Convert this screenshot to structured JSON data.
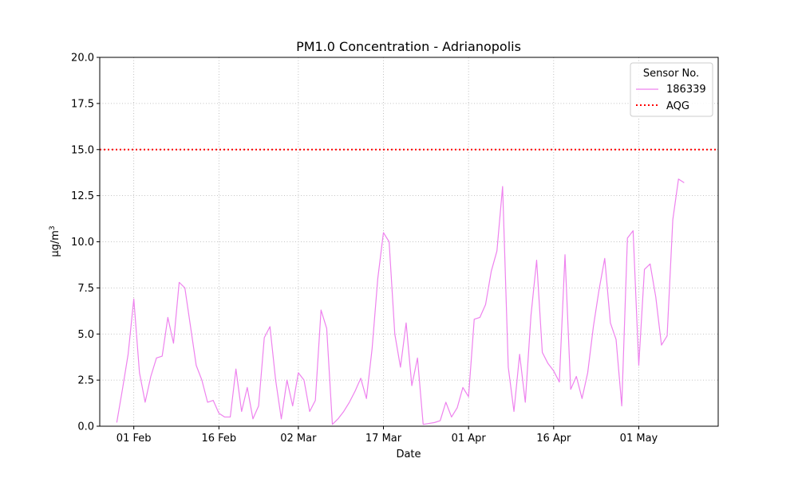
{
  "chart_data": {
    "type": "line",
    "title": "PM1.0 Concentration - Adrianopolis",
    "xlabel": "Date",
    "ylabel": "µg/m",
    "ylabel_sup": "3",
    "ylim": [
      0,
      20
    ],
    "yticks": [
      "0.0",
      "2.5",
      "5.0",
      "7.5",
      "10.0",
      "12.5",
      "15.0",
      "17.5",
      "20.0"
    ],
    "xlim": [
      "2025-01-26",
      "2025-05-15"
    ],
    "xticks": [
      {
        "date": "2025-02-01",
        "label": "01 Feb"
      },
      {
        "date": "2025-02-16",
        "label": "16 Feb"
      },
      {
        "date": "2025-03-02",
        "label": "02 Mar"
      },
      {
        "date": "2025-03-17",
        "label": "17 Mar"
      },
      {
        "date": "2025-04-01",
        "label": "01 Apr"
      },
      {
        "date": "2025-04-16",
        "label": "16 Apr"
      },
      {
        "date": "2025-05-01",
        "label": "01 May"
      }
    ],
    "grid": true,
    "legend": {
      "title": "Sensor No.",
      "position": "top-right"
    },
    "series": [
      {
        "name": "186339",
        "color": "#ee82ee",
        "style": "solid",
        "points": [
          [
            "2025-01-29",
            0.2
          ],
          [
            "2025-01-30",
            2.0
          ],
          [
            "2025-01-31",
            3.9
          ],
          [
            "2025-02-01",
            6.9
          ],
          [
            "2025-02-02",
            2.9
          ],
          [
            "2025-02-03",
            1.3
          ],
          [
            "2025-02-04",
            2.7
          ],
          [
            "2025-02-05",
            3.7
          ],
          [
            "2025-02-06",
            3.8
          ],
          [
            "2025-02-07",
            5.9
          ],
          [
            "2025-02-08",
            4.5
          ],
          [
            "2025-02-09",
            7.8
          ],
          [
            "2025-02-10",
            7.5
          ],
          [
            "2025-02-11",
            5.4
          ],
          [
            "2025-02-12",
            3.3
          ],
          [
            "2025-02-13",
            2.5
          ],
          [
            "2025-02-14",
            1.3
          ],
          [
            "2025-02-15",
            1.4
          ],
          [
            "2025-02-16",
            0.7
          ],
          [
            "2025-02-17",
            0.5
          ],
          [
            "2025-02-18",
            0.5
          ],
          [
            "2025-02-19",
            3.1
          ],
          [
            "2025-02-20",
            0.8
          ],
          [
            "2025-02-21",
            2.1
          ],
          [
            "2025-02-22",
            0.4
          ],
          [
            "2025-02-23",
            1.1
          ],
          [
            "2025-02-24",
            4.8
          ],
          [
            "2025-02-25",
            5.4
          ],
          [
            "2025-02-26",
            2.5
          ],
          [
            "2025-02-27",
            0.4
          ],
          [
            "2025-02-28",
            2.5
          ],
          [
            "2025-03-01",
            1.1
          ],
          [
            "2025-03-02",
            2.9
          ],
          [
            "2025-03-03",
            2.5
          ],
          [
            "2025-03-04",
            0.8
          ],
          [
            "2025-03-05",
            1.4
          ],
          [
            "2025-03-06",
            6.3
          ],
          [
            "2025-03-07",
            5.3
          ],
          [
            "2025-03-08",
            0.1
          ],
          [
            "2025-03-09",
            0.4
          ],
          [
            "2025-03-10",
            0.8
          ],
          [
            "2025-03-11",
            1.3
          ],
          [
            "2025-03-12",
            1.9
          ],
          [
            "2025-03-13",
            2.6
          ],
          [
            "2025-03-14",
            1.5
          ],
          [
            "2025-03-15",
            4.2
          ],
          [
            "2025-03-16",
            8.0
          ],
          [
            "2025-03-17",
            10.5
          ],
          [
            "2025-03-18",
            10.0
          ],
          [
            "2025-03-19",
            5.0
          ],
          [
            "2025-03-20",
            3.2
          ],
          [
            "2025-03-21",
            5.6
          ],
          [
            "2025-03-22",
            2.2
          ],
          [
            "2025-03-23",
            3.7
          ],
          [
            "2025-03-24",
            0.1
          ],
          [
            "2025-03-25",
            0.15
          ],
          [
            "2025-03-26",
            0.2
          ],
          [
            "2025-03-27",
            0.3
          ],
          [
            "2025-03-28",
            1.3
          ],
          [
            "2025-03-29",
            0.5
          ],
          [
            "2025-03-30",
            1.0
          ],
          [
            "2025-03-31",
            2.1
          ],
          [
            "2025-04-01",
            1.6
          ],
          [
            "2025-04-02",
            5.8
          ],
          [
            "2025-04-03",
            5.9
          ],
          [
            "2025-04-04",
            6.6
          ],
          [
            "2025-04-05",
            8.4
          ],
          [
            "2025-04-06",
            9.5
          ],
          [
            "2025-04-07",
            13.0
          ],
          [
            "2025-04-08",
            3.2
          ],
          [
            "2025-04-09",
            0.8
          ],
          [
            "2025-04-10",
            3.9
          ],
          [
            "2025-04-11",
            1.3
          ],
          [
            "2025-04-12",
            6.0
          ],
          [
            "2025-04-13",
            9.0
          ],
          [
            "2025-04-14",
            4.0
          ],
          [
            "2025-04-15",
            3.4
          ],
          [
            "2025-04-16",
            3.0
          ],
          [
            "2025-04-17",
            2.4
          ],
          [
            "2025-04-18",
            9.3
          ],
          [
            "2025-04-19",
            2.0
          ],
          [
            "2025-04-20",
            2.7
          ],
          [
            "2025-04-21",
            1.5
          ],
          [
            "2025-04-22",
            2.9
          ],
          [
            "2025-04-23",
            5.4
          ],
          [
            "2025-04-24",
            7.4
          ],
          [
            "2025-04-25",
            9.1
          ],
          [
            "2025-04-26",
            5.6
          ],
          [
            "2025-04-27",
            4.7
          ],
          [
            "2025-04-28",
            1.1
          ],
          [
            "2025-04-29",
            10.2
          ],
          [
            "2025-04-30",
            10.6
          ],
          [
            "2025-05-01",
            3.3
          ],
          [
            "2025-05-02",
            8.5
          ],
          [
            "2025-05-03",
            8.8
          ],
          [
            "2025-05-04",
            7.0
          ],
          [
            "2025-05-05",
            4.4
          ],
          [
            "2025-05-06",
            4.9
          ],
          [
            "2025-05-07",
            11.2
          ],
          [
            "2025-05-08",
            13.4
          ],
          [
            "2025-05-09",
            13.2
          ]
        ]
      },
      {
        "name": "AQG",
        "color": "#ff0000",
        "style": "dotted",
        "y": 15.0
      }
    ]
  }
}
